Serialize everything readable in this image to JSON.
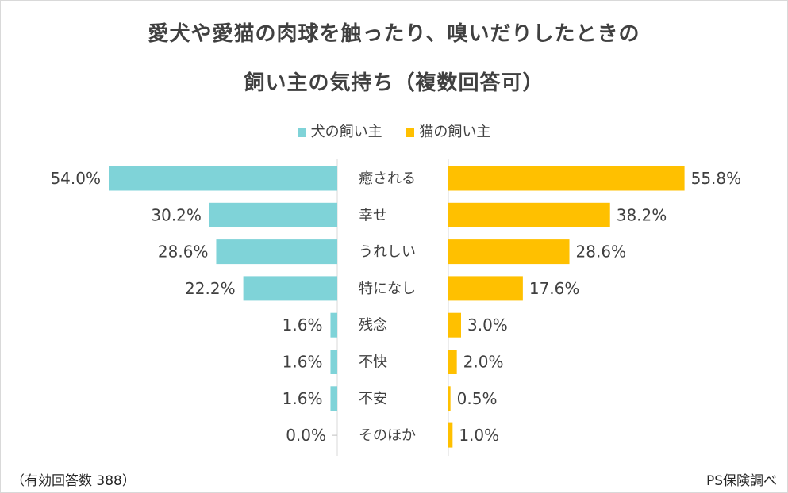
{
  "chart_data": {
    "type": "bar",
    "orientation": "horizontal-butterfly",
    "title_line1": "愛犬や愛猫の肉球を触ったり、嗅いだりしたときの",
    "title_line2": "飼い主の気持ち（複数回答可）",
    "categories": [
      "癒される",
      "幸せ",
      "うれしい",
      "特になし",
      "残念",
      "不快",
      "不安",
      "そのほか"
    ],
    "series": [
      {
        "name": "犬の飼い主",
        "color": "#7FD3D8",
        "values": [
          54.0,
          30.2,
          28.6,
          22.2,
          1.6,
          1.6,
          1.6,
          0.0
        ],
        "labels": [
          "54.0%",
          "30.2%",
          "28.6%",
          "22.2%",
          "1.6%",
          "1.6%",
          "1.6%",
          "0.0%"
        ]
      },
      {
        "name": "猫の飼い主",
        "color": "#FFC000",
        "values": [
          55.8,
          38.2,
          28.6,
          17.6,
          3.0,
          2.0,
          0.5,
          1.0
        ],
        "labels": [
          "55.8%",
          "38.2%",
          "28.6%",
          "17.6%",
          "3.0%",
          "2.0%",
          "0.5%",
          "1.0%"
        ]
      }
    ],
    "xlim": [
      0,
      60
    ],
    "legend_position": "top-center",
    "grid": false
  },
  "footer": {
    "sample": "（有効回答数 388）",
    "source": "PS保険調べ"
  }
}
